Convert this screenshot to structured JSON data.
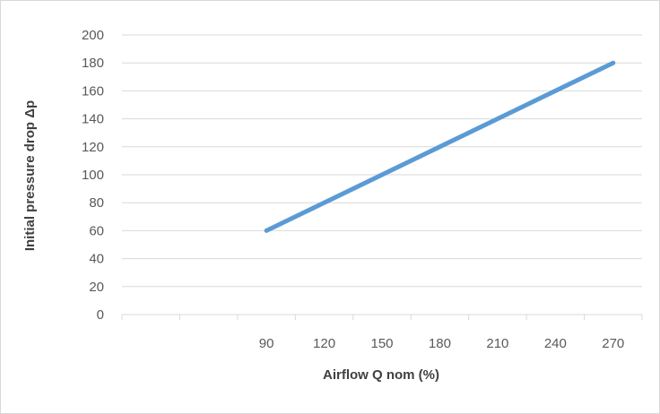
{
  "chart_data": {
    "type": "line",
    "title": "",
    "xlabel": "Airflow Q nom (%)",
    "ylabel": "Initial pressure drop Δp",
    "x_ticks": [
      "90",
      "120",
      "150",
      "180",
      "210",
      "240",
      "270"
    ],
    "y_ticks": [
      "0",
      "20",
      "40",
      "60",
      "80",
      "100",
      "120",
      "140",
      "160",
      "180",
      "200"
    ],
    "ylim": [
      0,
      200
    ],
    "xlim": [
      0,
      270
    ],
    "grid": "horizontal",
    "legend": "none",
    "series": [
      {
        "color": "#5b9bd5",
        "points": [
          {
            "x": 90,
            "y": 60
          },
          {
            "x": 270,
            "y": 180
          }
        ]
      }
    ]
  }
}
